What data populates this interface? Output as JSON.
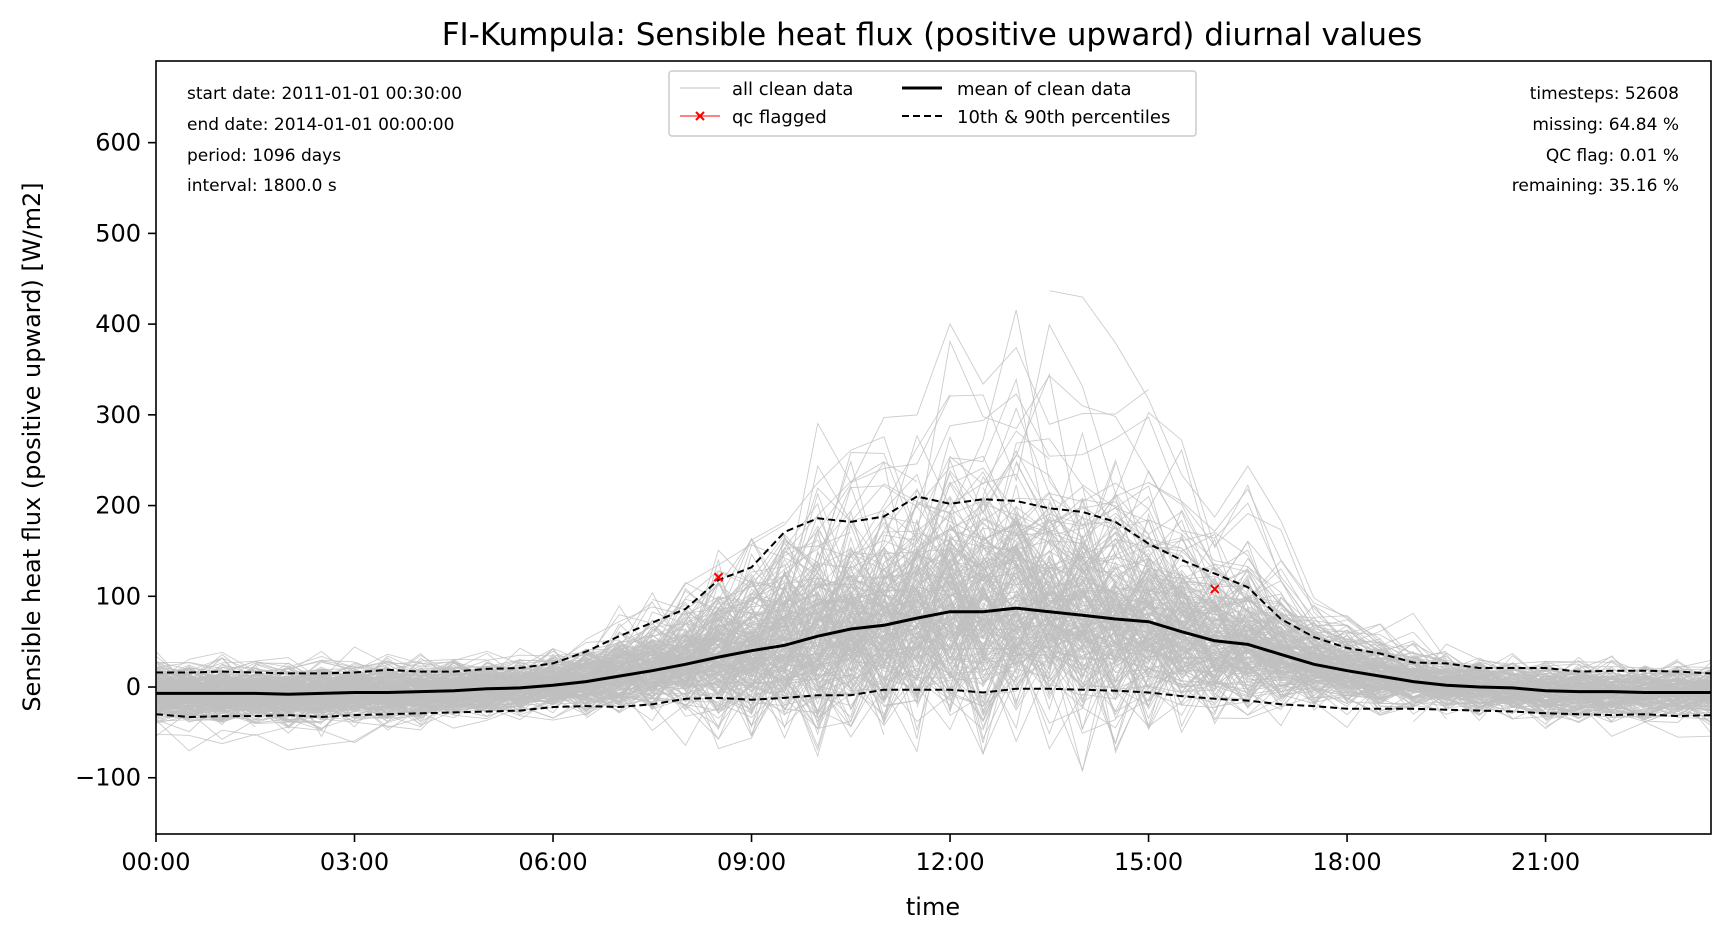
{
  "chart_data": {
    "type": "line",
    "title": "FI-Kumpula: Sensible heat flux (positive upward) diurnal values",
    "xlabel": "time",
    "ylabel": "Sensible heat flux (positive upward) [W/m2]",
    "xlim_hours": [
      0,
      23.5
    ],
    "ylim": [
      -162,
      690
    ],
    "x_ticks": [
      {
        "hour": 0,
        "label": "00:00"
      },
      {
        "hour": 3,
        "label": "03:00"
      },
      {
        "hour": 6,
        "label": "06:00"
      },
      {
        "hour": 9,
        "label": "09:00"
      },
      {
        "hour": 12,
        "label": "12:00"
      },
      {
        "hour": 15,
        "label": "15:00"
      },
      {
        "hour": 18,
        "label": "18:00"
      },
      {
        "hour": 21,
        "label": "21:00"
      }
    ],
    "y_ticks": [
      {
        "value": -100,
        "label": "−100"
      },
      {
        "value": 0,
        "label": "0"
      },
      {
        "value": 100,
        "label": "100"
      },
      {
        "value": 200,
        "label": "200"
      },
      {
        "value": 300,
        "label": "300"
      },
      {
        "value": 400,
        "label": "400"
      },
      {
        "value": 500,
        "label": "500"
      },
      {
        "value": 600,
        "label": "600"
      }
    ],
    "grid": false,
    "legend_placement": "upper-center",
    "legend": [
      {
        "label": "all clean data",
        "style": "thin-gray"
      },
      {
        "label": "mean of clean data",
        "style": "solid-black"
      },
      {
        "label": "qc flagged",
        "style": "red-x"
      },
      {
        "label": "10th & 90th percentiles",
        "style": "dashed-black"
      }
    ],
    "info_left": [
      "start date: 2011-01-01 00:30:00",
      "end date: 2014-01-01 00:00:00",
      "period: 1096 days",
      "interval: 1800.0 s"
    ],
    "info_right": [
      "timesteps: 52608",
      "missing: 64.84 %",
      "QC flag: 0.01 %",
      "remaining: 35.16 %"
    ],
    "x_hours": [
      0,
      0.5,
      1,
      1.5,
      2,
      2.5,
      3,
      3.5,
      4,
      4.5,
      5,
      5.5,
      6,
      6.5,
      7,
      7.5,
      8,
      8.5,
      9,
      9.5,
      10,
      10.5,
      11,
      11.5,
      12,
      12.5,
      13,
      13.5,
      14,
      14.5,
      15,
      15.5,
      16,
      16.5,
      17,
      17.5,
      18,
      18.5,
      19,
      19.5,
      20,
      20.5,
      21,
      21.5,
      22,
      22.5,
      23,
      23.5
    ],
    "series": [
      {
        "name": "mean of clean data",
        "color": "#000000",
        "values": [
          -7,
          -7,
          -7,
          -7,
          -8,
          -7,
          -6,
          -6,
          -5,
          -4,
          -2,
          -1,
          2,
          6,
          12,
          18,
          25,
          33,
          40,
          46,
          56,
          64,
          68,
          76,
          83,
          83,
          87,
          83,
          79,
          75,
          72,
          61,
          51,
          47,
          36,
          25,
          18,
          12,
          6,
          2,
          0,
          -1,
          -4,
          -5,
          -5,
          -6,
          -6,
          -6
        ]
      },
      {
        "name": "90th percentile",
        "color": "#000000",
        "values": [
          16,
          16,
          17,
          16,
          15,
          15,
          16,
          19,
          17,
          17,
          20,
          21,
          26,
          39,
          56,
          71,
          86,
          118,
          132,
          171,
          186,
          182,
          188,
          210,
          202,
          207,
          205,
          197,
          193,
          182,
          158,
          140,
          125,
          110,
          75,
          55,
          43,
          37,
          27,
          26,
          21,
          21,
          21,
          17,
          18,
          18,
          17,
          15
        ]
      },
      {
        "name": "10th percentile",
        "color": "#000000",
        "values": [
          -30,
          -33,
          -32,
          -32,
          -31,
          -33,
          -31,
          -30,
          -29,
          -28,
          -27,
          -26,
          -22,
          -21,
          -22,
          -19,
          -13,
          -12,
          -14,
          -12,
          -9,
          -9,
          -3,
          -3,
          -3,
          -6,
          -2,
          -2,
          -3,
          -4,
          -6,
          -10,
          -13,
          -15,
          -19,
          -21,
          -24,
          -24,
          -24,
          -25,
          -26,
          -27,
          -29,
          -30,
          -31,
          -30,
          -32,
          -31
        ]
      }
    ],
    "qc_flagged_points": [
      {
        "hour": 8.5,
        "value": 121
      },
      {
        "hour": 16,
        "value": 108
      }
    ],
    "clean_data_summary": {
      "description_color": "#bfbfbf"
    }
  }
}
